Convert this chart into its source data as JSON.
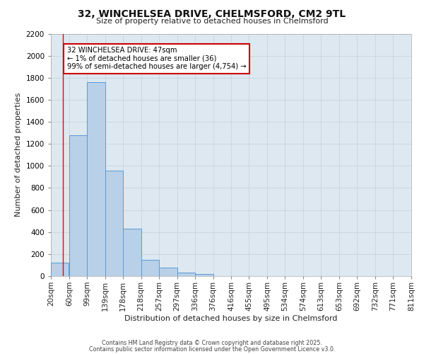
{
  "title": "32, WINCHELSEA DRIVE, CHELMSFORD, CM2 9TL",
  "subtitle": "Size of property relative to detached houses in Chelmsford",
  "xlabel": "Distribution of detached houses by size in Chelmsford",
  "ylabel": "Number of detached properties",
  "bar_left_edges": [
    20,
    60,
    99,
    139,
    178,
    218,
    257,
    297,
    336,
    376,
    416,
    455,
    495,
    534,
    574,
    613,
    653,
    692,
    732,
    771
  ],
  "bar_widths": [
    39,
    39,
    40,
    39,
    40,
    39,
    40,
    39,
    40,
    39,
    39,
    40,
    39,
    40,
    39,
    40,
    39,
    40,
    39,
    40
  ],
  "bar_heights": [
    120,
    1280,
    1760,
    960,
    430,
    150,
    75,
    35,
    20,
    0,
    0,
    0,
    0,
    0,
    0,
    0,
    0,
    0,
    0,
    0
  ],
  "bar_color": "#b8d0e8",
  "bar_edge_color": "#5b9bd5",
  "xticklabels": [
    "20sqm",
    "60sqm",
    "99sqm",
    "139sqm",
    "178sqm",
    "218sqm",
    "257sqm",
    "297sqm",
    "336sqm",
    "376sqm",
    "416sqm",
    "455sqm",
    "495sqm",
    "534sqm",
    "574sqm",
    "613sqm",
    "653sqm",
    "692sqm",
    "732sqm",
    "771sqm",
    "811sqm"
  ],
  "xtick_positions": [
    20,
    60,
    99,
    139,
    178,
    218,
    257,
    297,
    336,
    376,
    416,
    455,
    495,
    534,
    574,
    613,
    653,
    692,
    732,
    771,
    811
  ],
  "ylim": [
    0,
    2200
  ],
  "xlim": [
    20,
    811
  ],
  "yticks": [
    0,
    200,
    400,
    600,
    800,
    1000,
    1200,
    1400,
    1600,
    1800,
    2000,
    2200
  ],
  "red_line_x": 47,
  "annotation_text_line1": "32 WINCHELSEA DRIVE: 47sqm",
  "annotation_text_line2": "← 1% of detached houses are smaller (36)",
  "annotation_text_line3": "99% of semi-detached houses are larger (4,754) →",
  "annotation_box_facecolor": "#ffffff",
  "annotation_box_edgecolor": "#cc0000",
  "grid_color": "#c8d4e0",
  "plot_bg_color": "#dde8f0",
  "fig_bg_color": "#ffffff",
  "footer1": "Contains HM Land Registry data © Crown copyright and database right 2025.",
  "footer2": "Contains public sector information licensed under the Open Government Licence v3.0."
}
